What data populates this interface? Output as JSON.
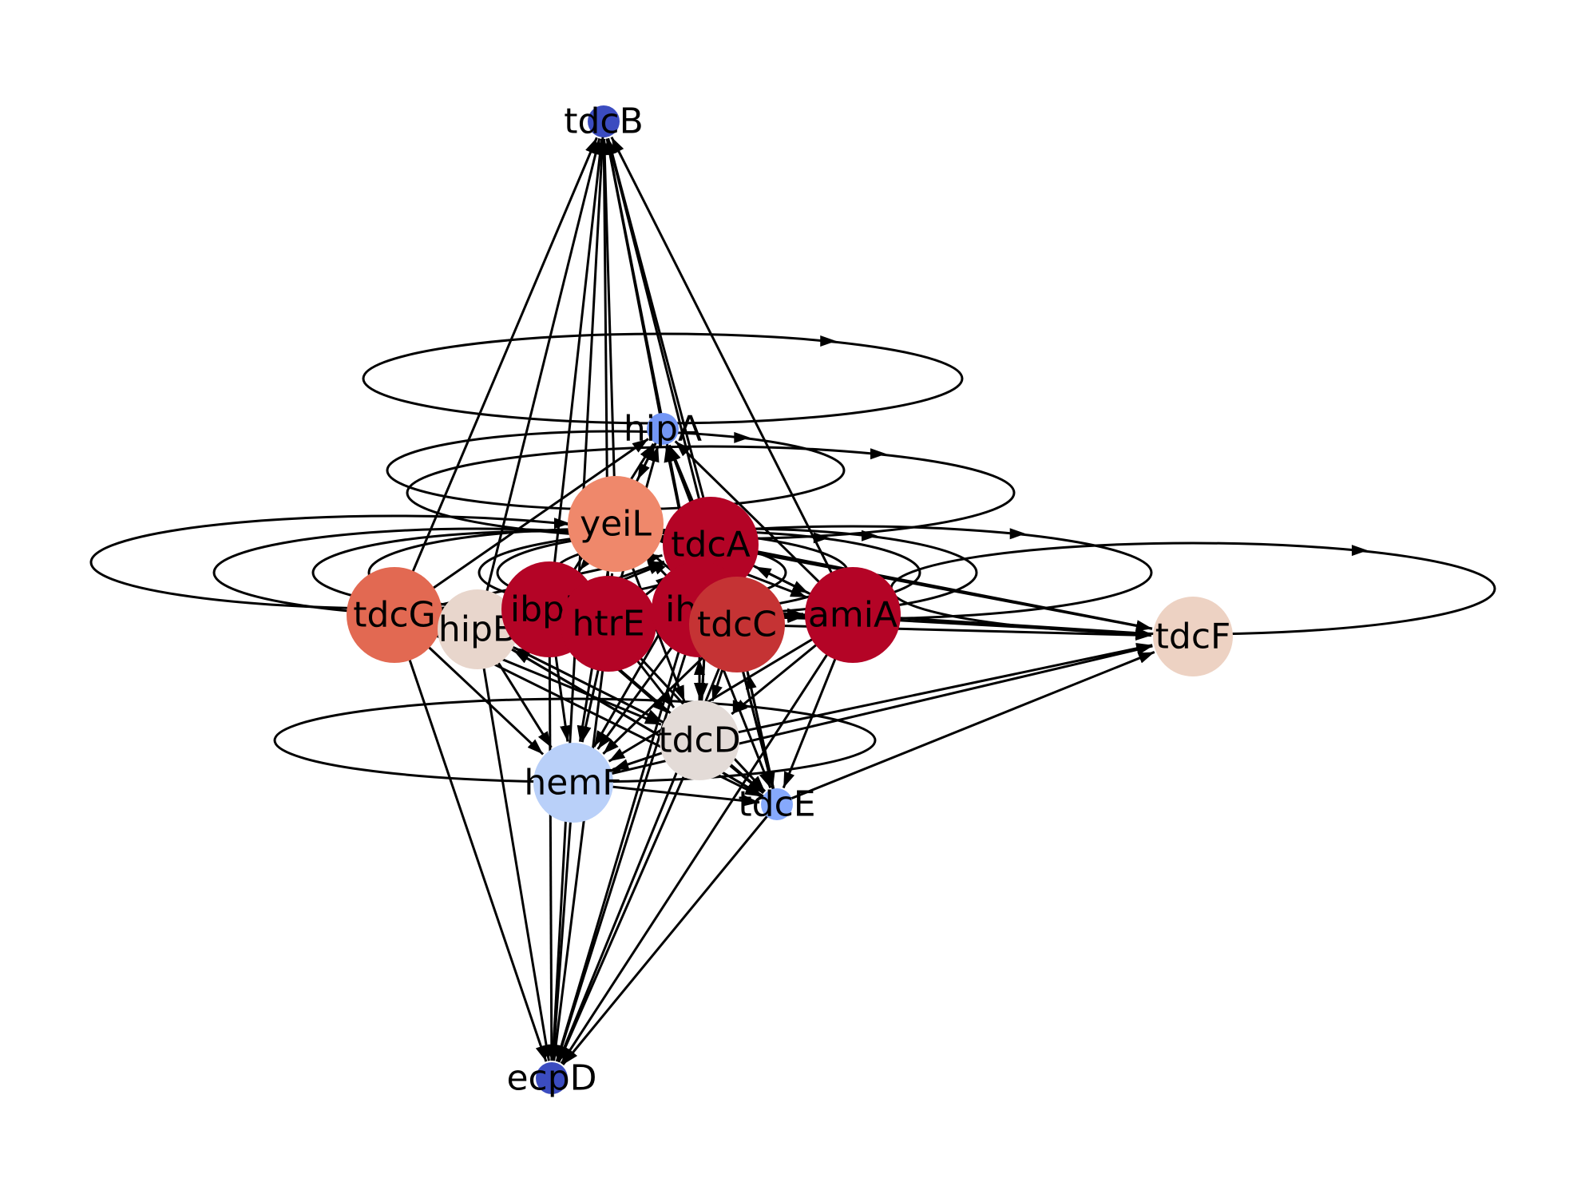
{
  "graph": {
    "nodes": [
      {
        "id": "tdcB",
        "label": "tdcB",
        "color": "#3b4cc0",
        "size": "small"
      },
      {
        "id": "hipA",
        "label": "hipA",
        "color": "#7396f5",
        "size": "small"
      },
      {
        "id": "yeiL",
        "label": "yeiL",
        "color": "#ef886b",
        "size": "large"
      },
      {
        "id": "tdcA",
        "label": "tdcA",
        "color": "#b40426",
        "size": "large"
      },
      {
        "id": "tdcG",
        "label": "tdcG",
        "color": "#e26952",
        "size": "large"
      },
      {
        "id": "hipB",
        "label": "hipB",
        "color": "#e8d6cc",
        "size": "medium"
      },
      {
        "id": "ibpB",
        "label": "ibpB",
        "color": "#b40426",
        "size": "large"
      },
      {
        "id": "htrE",
        "label": "htrE",
        "color": "#b40426",
        "size": "large"
      },
      {
        "id": "ihfB",
        "label": "ihfB",
        "color": "#b40426",
        "size": "large"
      },
      {
        "id": "tdcC",
        "label": "tdcC",
        "color": "#c53334",
        "size": "large"
      },
      {
        "id": "amiA",
        "label": "amiA",
        "color": "#b40426",
        "size": "large"
      },
      {
        "id": "tdcF",
        "label": "tdcF",
        "color": "#edd2c3",
        "size": "medium"
      },
      {
        "id": "tdcD",
        "label": "tdcD",
        "color": "#e3dbd7",
        "size": "medium"
      },
      {
        "id": "hemF",
        "label": "hemF",
        "color": "#b9d0f9",
        "size": "medium"
      },
      {
        "id": "tdcE",
        "label": "tdcE",
        "color": "#86a9fc",
        "size": "small"
      },
      {
        "id": "ecpD",
        "label": "ecpD",
        "color": "#3b4cc0",
        "size": "small"
      }
    ],
    "edges": [
      [
        "hipB",
        "tdcB"
      ],
      [
        "ibpB",
        "tdcB"
      ],
      [
        "htrE",
        "tdcB"
      ],
      [
        "yeiL",
        "tdcB"
      ],
      [
        "tdcA",
        "tdcB"
      ],
      [
        "ihfB",
        "tdcB"
      ],
      [
        "tdcC",
        "tdcB"
      ],
      [
        "amiA",
        "tdcB"
      ],
      [
        "hipA",
        "tdcB"
      ],
      [
        "tdcG",
        "tdcB"
      ],
      [
        "tdcB",
        "ecpD"
      ],
      [
        "tdcG",
        "ecpD"
      ],
      [
        "hipB",
        "ecpD"
      ],
      [
        "ibpB",
        "ecpD"
      ],
      [
        "htrE",
        "ecpD"
      ],
      [
        "hemF",
        "ecpD"
      ],
      [
        "tdcD",
        "ecpD"
      ],
      [
        "tdcE",
        "ecpD"
      ],
      [
        "ihfB",
        "ecpD"
      ],
      [
        "tdcC",
        "ecpD"
      ],
      [
        "tdcA",
        "ecpD"
      ],
      [
        "amiA",
        "ecpD"
      ],
      [
        "yeiL",
        "hipA"
      ],
      [
        "tdcA",
        "hipA"
      ],
      [
        "ibpB",
        "hipA"
      ],
      [
        "htrE",
        "hipA"
      ],
      [
        "ihfB",
        "hipA"
      ],
      [
        "tdcC",
        "hipA"
      ],
      [
        "amiA",
        "hipA"
      ],
      [
        "tdcG",
        "hipA"
      ],
      [
        "tdcA",
        "tdcF"
      ],
      [
        "amiA",
        "tdcF"
      ],
      [
        "tdcC",
        "tdcF"
      ],
      [
        "ihfB",
        "tdcF"
      ],
      [
        "tdcD",
        "tdcF"
      ],
      [
        "tdcE",
        "tdcF"
      ],
      [
        "hemF",
        "tdcF"
      ],
      [
        "yeiL",
        "tdcF"
      ],
      [
        "tdcG",
        "hemF"
      ],
      [
        "hipB",
        "hemF"
      ],
      [
        "ibpB",
        "hemF"
      ],
      [
        "htrE",
        "hemF"
      ],
      [
        "ihfB",
        "hemF"
      ],
      [
        "tdcA",
        "hemF"
      ],
      [
        "yeiL",
        "hemF"
      ],
      [
        "tdcC",
        "hemF"
      ],
      [
        "amiA",
        "hemF"
      ],
      [
        "tdcD",
        "hemF"
      ],
      [
        "hipB",
        "tdcE"
      ],
      [
        "ibpB",
        "tdcE"
      ],
      [
        "htrE",
        "tdcE"
      ],
      [
        "ihfB",
        "tdcE"
      ],
      [
        "tdcA",
        "tdcE"
      ],
      [
        "tdcC",
        "tdcE"
      ],
      [
        "amiA",
        "tdcE"
      ],
      [
        "tdcD",
        "tdcE"
      ],
      [
        "hemF",
        "tdcE"
      ],
      [
        "tdcG",
        "tdcE"
      ],
      [
        "hipB",
        "tdcD"
      ],
      [
        "ibpB",
        "tdcD"
      ],
      [
        "htrE",
        "tdcD"
      ],
      [
        "ihfB",
        "tdcD"
      ],
      [
        "tdcA",
        "tdcD"
      ],
      [
        "yeiL",
        "tdcD"
      ],
      [
        "amiA",
        "tdcD"
      ],
      [
        "tdcC",
        "tdcD"
      ],
      [
        "tdcG",
        "tdcD"
      ],
      [
        "tdcD",
        "hipB"
      ],
      [
        "amiA",
        "hipB"
      ],
      [
        "tdcE",
        "hipB"
      ],
      [
        "amiA",
        "tdcA"
      ],
      [
        "tdcD",
        "tdcA"
      ],
      [
        "tdcE",
        "tdcA"
      ],
      [
        "tdcA",
        "amiA"
      ],
      [
        "yeiL",
        "ibpB"
      ],
      [
        "tdcD",
        "ihfB"
      ],
      [
        "tdcE",
        "tdcC"
      ],
      [
        "tdcG",
        "amiA"
      ],
      [
        "hipB",
        "amiA"
      ],
      [
        "ibpB",
        "amiA"
      ],
      [
        "htrE",
        "amiA"
      ],
      [
        "yeiL",
        "tdcC"
      ],
      [
        "tdcG",
        "tdcA"
      ],
      [
        "hipB",
        "tdcA"
      ],
      [
        "ibpB",
        "tdcA"
      ],
      [
        "htrE",
        "tdcA"
      ],
      [
        "yeiL",
        "amiA"
      ],
      [
        "hipA",
        "yeiL"
      ],
      [
        "tdcA",
        "yeiL"
      ],
      [
        "ihfB",
        "yeiL"
      ],
      [
        "htrE",
        "yeiL"
      ]
    ],
    "loops": [
      {
        "node": "hipA",
        "arrow": "right"
      },
      {
        "node": "yeiL",
        "arrow": "right"
      },
      {
        "node": "tdcA",
        "arrow": "right"
      },
      {
        "node": "tdcG",
        "arrow": "right"
      },
      {
        "node": "hipB",
        "arrow": "right"
      },
      {
        "node": "ibpB",
        "arrow": "right"
      },
      {
        "node": "htrE",
        "arrow": "right"
      },
      {
        "node": "ihfB",
        "arrow": "right"
      },
      {
        "node": "tdcC",
        "arrow": "right"
      },
      {
        "node": "amiA",
        "arrow": "right"
      },
      {
        "node": "tdcF",
        "arrow": "right"
      },
      {
        "node": "tdcD",
        "arrow": "right"
      }
    ]
  }
}
